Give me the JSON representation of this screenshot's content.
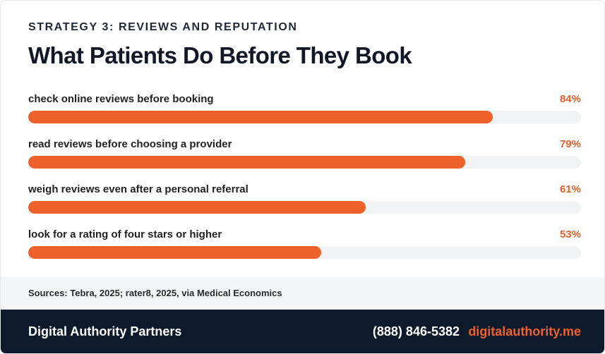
{
  "eyebrow": "STRATEGY 3: REVIEWS AND REPUTATION",
  "title": "What Patients Do Before They Book",
  "colors": {
    "accent": "#ef612c",
    "track": "#f2f3f5",
    "footer_bg": "#0d1a2b",
    "sources_bg": "#f4f5f6"
  },
  "chart_data": {
    "type": "bar",
    "orientation": "horizontal",
    "categories": [
      "check online reviews before booking",
      "read reviews before choosing a provider",
      "weigh reviews even after a personal referral",
      "look for a rating of four stars or higher"
    ],
    "values": [
      84,
      79,
      61,
      53
    ],
    "value_labels": [
      "84%",
      "79%",
      "61%",
      "53%"
    ],
    "unit": "%",
    "xlim": [
      0,
      100
    ],
    "title": "What Patients Do Before They Book",
    "xlabel": "",
    "ylabel": "",
    "grid": false,
    "legend": "none"
  },
  "sources": "Sources: Tebra, 2025; rater8, 2025, via Medical Economics",
  "footer": {
    "brand": "Digital Authority Partners",
    "phone": "(888) 846-5382",
    "website": "digitalauthority.me"
  }
}
